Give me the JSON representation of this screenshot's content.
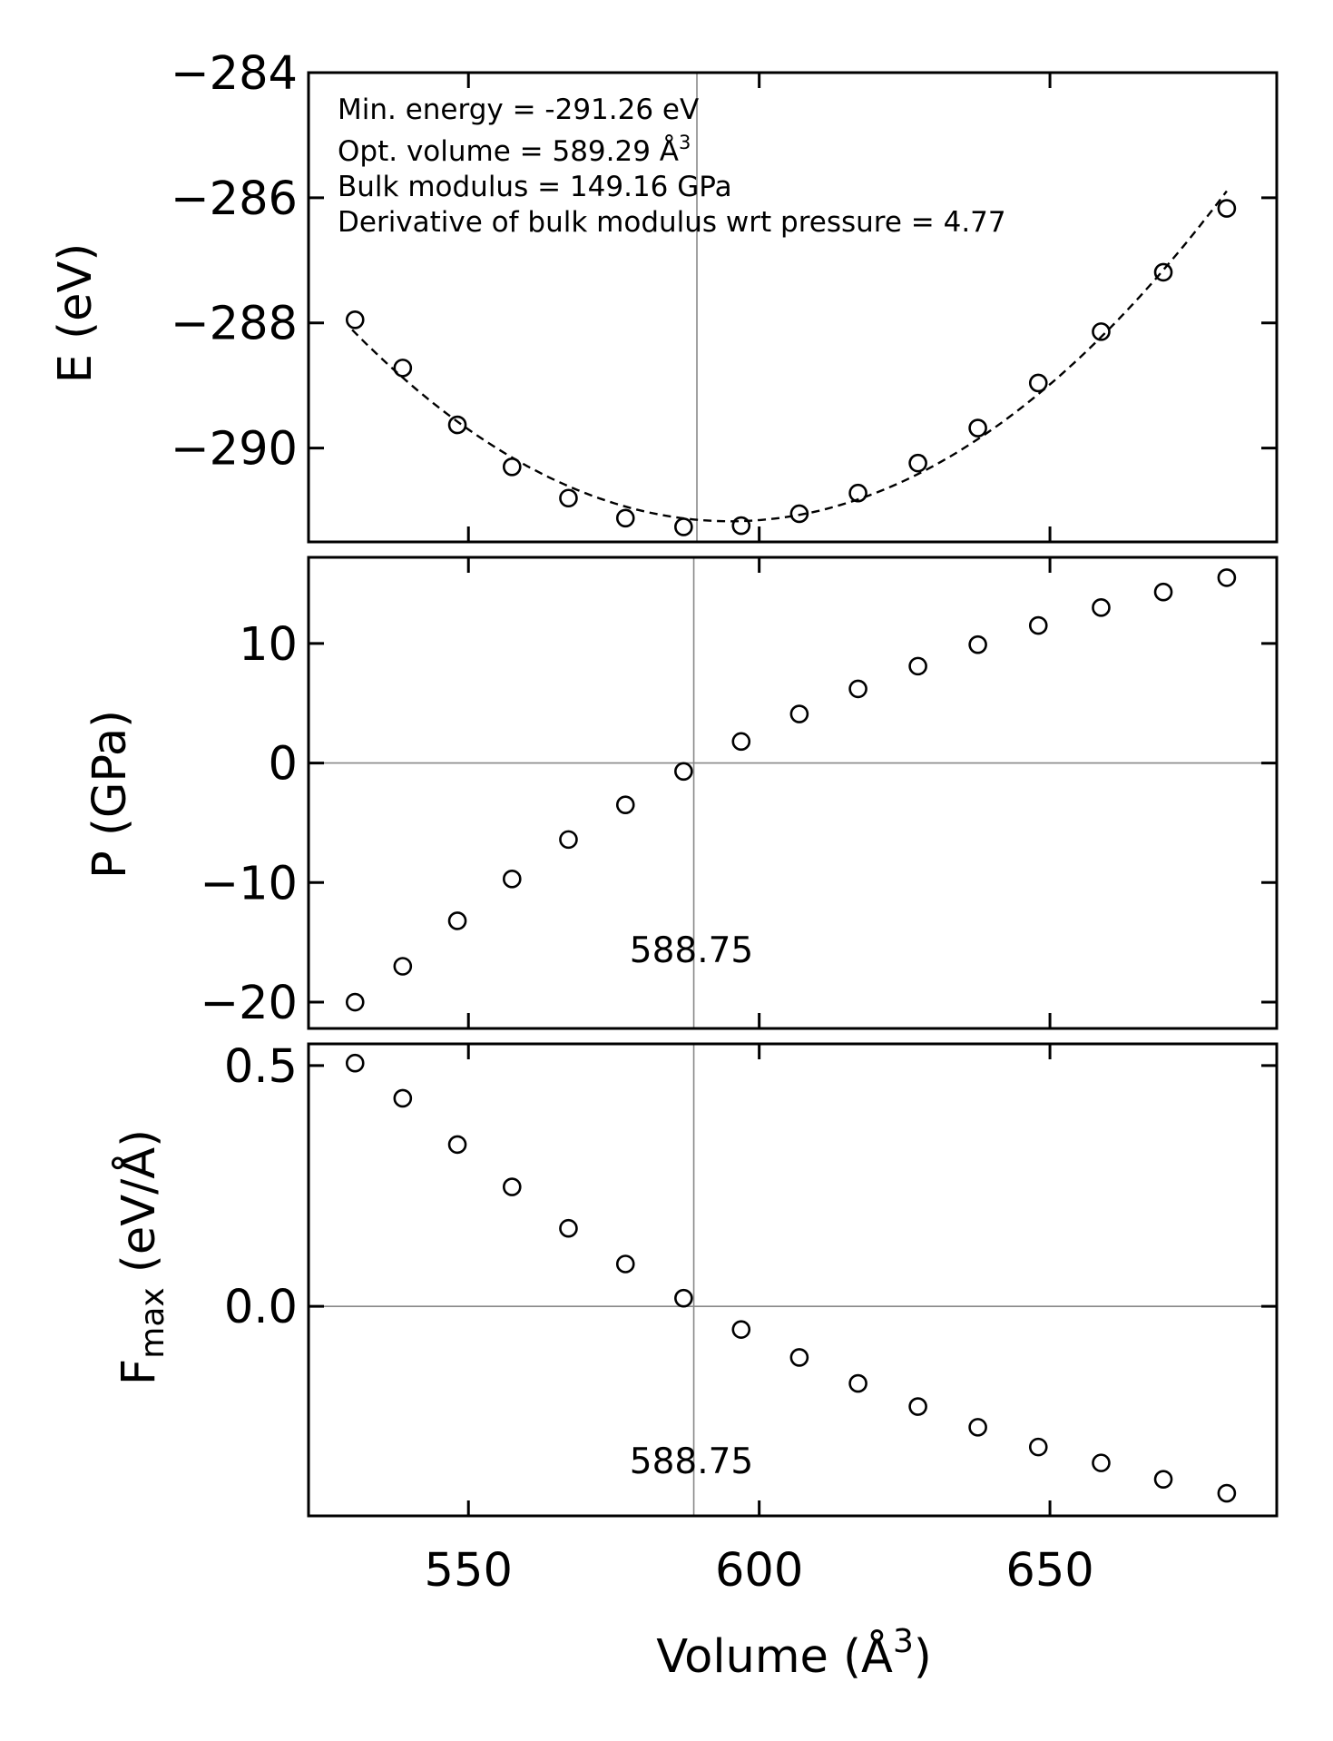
{
  "chart_data": [
    {
      "type": "scatter",
      "panel": "energy",
      "ylabel": "E (eV)",
      "xlim": [
        522.5,
        689
      ],
      "ylim": [
        -291.5,
        -284
      ],
      "yticks": [
        -290,
        -288,
        -286,
        -284
      ],
      "ytick_labels": [
        "−290",
        "−288",
        "−286",
        "−284"
      ],
      "xticks": [
        550,
        600,
        650
      ],
      "x": [
        530.5,
        538.7,
        548.1,
        557.5,
        567.2,
        577.0,
        587.0,
        596.9,
        606.9,
        617.0,
        627.3,
        637.6,
        648.0,
        658.8,
        669.5,
        680.4
      ],
      "y": [
        -287.95,
        -288.72,
        -289.63,
        -290.3,
        -290.8,
        -291.12,
        -291.26,
        -291.24,
        -291.05,
        -290.72,
        -290.24,
        -289.68,
        -288.96,
        -288.14,
        -287.19,
        -286.17
      ],
      "fit_line": {
        "style": "dashed",
        "from": "x[0]",
        "to": "x[-1]"
      },
      "vline": 589.29,
      "annotations": [
        {
          "id": "min_energy",
          "text": "Min. energy = -291.26 eV"
        },
        {
          "id": "opt_volume",
          "text": "Opt. volume = 589.29 Å",
          "sup": "3"
        },
        {
          "id": "bulk_modulus",
          "text": "Bulk modulus = 149.16 GPa"
        },
        {
          "id": "bulk_derivative",
          "text": "Derivative of bulk modulus wrt pressure = 4.77"
        }
      ]
    },
    {
      "type": "scatter",
      "panel": "pressure",
      "ylabel": "P (GPa)",
      "xlim": [
        522.5,
        689
      ],
      "ylim": [
        -22.2,
        17.2
      ],
      "yticks": [
        -20,
        -10,
        0,
        10
      ],
      "ytick_labels": [
        "−20",
        "−10",
        "0",
        "10"
      ],
      "xticks": [
        550,
        600,
        650
      ],
      "x": [
        530.5,
        538.7,
        548.1,
        557.5,
        567.2,
        577.0,
        587.0,
        596.9,
        606.9,
        617.0,
        627.3,
        637.6,
        648.0,
        658.8,
        669.5,
        680.4
      ],
      "y": [
        -20.0,
        -17.0,
        -13.2,
        -9.7,
        -6.4,
        -3.5,
        -0.7,
        1.8,
        4.1,
        6.2,
        8.1,
        9.9,
        11.5,
        13.0,
        14.3,
        15.5
      ],
      "hline": 0,
      "vline": 588.75,
      "vline_label": "588.75"
    },
    {
      "type": "scatter",
      "panel": "force",
      "ylabel": "F",
      "ylabel_sub": "max",
      "ylabel_suffix": " (eV/Å)",
      "xlabel": "Volume (Å",
      "xlabel_sup": "3",
      "xlabel_suffix": ")",
      "xlim": [
        522.5,
        689
      ],
      "ylim": [
        -0.435,
        0.545
      ],
      "yticks": [
        0.0,
        0.5
      ],
      "ytick_labels": [
        "0.0",
        "0.5"
      ],
      "xticks": [
        550,
        600,
        650
      ],
      "xtick_labels": [
        "550",
        "600",
        "650"
      ],
      "x": [
        530.5,
        538.7,
        548.1,
        557.5,
        567.2,
        577.0,
        587.0,
        596.9,
        606.9,
        617.0,
        627.3,
        637.6,
        648.0,
        658.8,
        669.5,
        680.4
      ],
      "y": [
        0.505,
        0.432,
        0.336,
        0.248,
        0.162,
        0.088,
        0.017,
        -0.048,
        -0.106,
        -0.16,
        -0.208,
        -0.251,
        -0.292,
        -0.325,
        -0.359,
        -0.388
      ],
      "hline": 0,
      "vline": 588.75,
      "vline_label": "588.75"
    }
  ]
}
